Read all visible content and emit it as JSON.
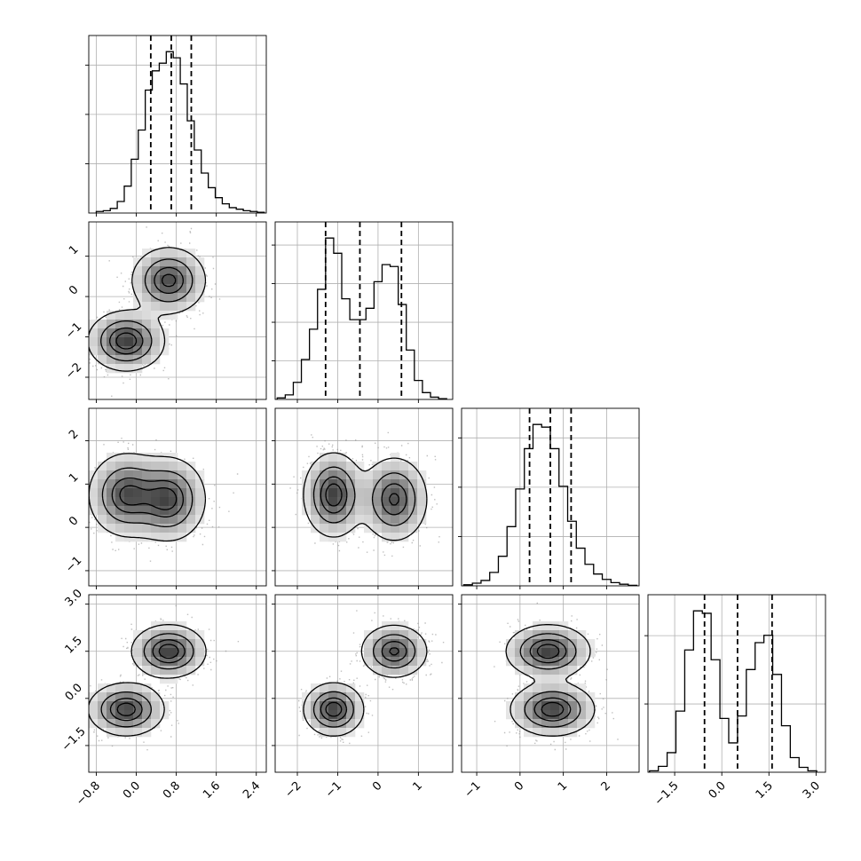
{
  "chart_data": {
    "type": "corner",
    "title": "",
    "params": [
      {
        "id": "p0",
        "range": [
          -0.95,
          2.6
        ],
        "ticks": [
          -0.8,
          0.0,
          0.8,
          1.6,
          2.4
        ],
        "tick_labels": [
          "−0.8",
          "0.0",
          "0.8",
          "1.6",
          "2.4"
        ],
        "quantiles": [
          0.29,
          0.7,
          1.1
        ],
        "hist_density_ticks": 3,
        "hist": {
          "edges_start": -0.8,
          "bin_width": 0.14,
          "counts": [
            2,
            3,
            6,
            15,
            35,
            70,
            108,
            160,
            185,
            195,
            210,
            202,
            168,
            120,
            82,
            52,
            33,
            20,
            12,
            7,
            5,
            3,
            2,
            1
          ]
        },
        "modes": [
          {
            "mean": 0.7,
            "sd": 0.42,
            "weight": 1.0
          }
        ]
      },
      {
        "id": "p1",
        "range": [
          -2.55,
          1.85
        ],
        "ticks": [
          -2,
          -1,
          0,
          1
        ],
        "tick_labels": [
          "−2",
          "−1",
          "0",
          "1"
        ],
        "quantiles": [
          -1.3,
          -0.45,
          0.58
        ],
        "hist_density_ticks": 4,
        "hist": {
          "edges_start": -2.5,
          "bin_width": 0.2,
          "counts": [
            4,
            12,
            45,
            105,
            185,
            290,
            425,
            385,
            265,
            210,
            210,
            240,
            310,
            355,
            350,
            250,
            130,
            50,
            18,
            6,
            2
          ]
        },
        "modes": [
          {
            "mean": -1.1,
            "sd": 0.36,
            "weight": 0.5
          },
          {
            "mean": 0.4,
            "sd": 0.4,
            "weight": 0.5
          }
        ]
      },
      {
        "id": "p2",
        "range": [
          -1.35,
          2.75
        ],
        "ticks": [
          -1,
          0,
          1,
          2
        ],
        "tick_labels": [
          "−1",
          "0",
          "1",
          "2"
        ],
        "quantiles": [
          0.22,
          0.7,
          1.18
        ],
        "hist_density_ticks": 3,
        "hist": {
          "edges_start": -1.3,
          "bin_width": 0.2,
          "counts": [
            2,
            5,
            10,
            25,
            55,
            110,
            180,
            255,
            300,
            295,
            255,
            185,
            120,
            70,
            40,
            22,
            12,
            6,
            3,
            1
          ]
        },
        "modes": [
          {
            "mean": 0.7,
            "sd": 0.48,
            "weight": 1.0
          }
        ]
      },
      {
        "id": "p3",
        "range": [
          -2.35,
          3.3
        ],
        "ticks": [
          -1.5,
          0.0,
          1.5,
          3.0
        ],
        "tick_labels": [
          "−1.5",
          "0.0",
          "1.5",
          "3.0"
        ],
        "quantiles": [
          -0.55,
          0.5,
          1.6
        ],
        "hist_density_ticks": 2,
        "hist": {
          "edges_start": -2.3,
          "bin_width": 0.28,
          "counts": [
            3,
            12,
            40,
            125,
            250,
            330,
            325,
            230,
            110,
            60,
            115,
            210,
            265,
            280,
            200,
            95,
            30,
            10,
            3
          ]
        },
        "modes": [
          {
            "mean": -0.35,
            "sd": 0.42,
            "weight": 0.5
          },
          {
            "mean": 1.5,
            "sd": 0.42,
            "weight": 0.5
          }
        ]
      }
    ],
    "joint_components": [
      [
        0.5,
        [
          -0.2,
          -1.1,
          0.75,
          -0.35
        ],
        [
          0.37,
          0.36,
          0.47,
          0.41
        ]
      ],
      [
        0.5,
        [
          0.65,
          0.4,
          0.65,
          1.5
        ],
        [
          0.36,
          0.4,
          0.47,
          0.41
        ]
      ]
    ],
    "contour_levels": [
      0.118,
      0.393,
      0.675,
      0.865
    ],
    "grid": true
  }
}
